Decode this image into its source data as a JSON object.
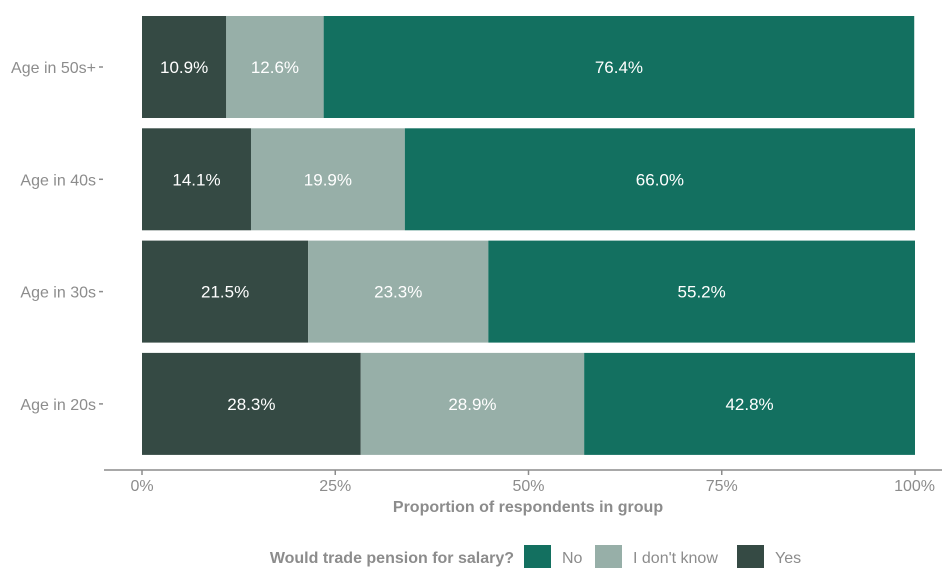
{
  "chart_data": {
    "type": "bar",
    "orientation": "horizontal",
    "stacked": true,
    "categories": [
      "Age in 50s+",
      "Age in 40s",
      "Age in 30s",
      "Age in 20s"
    ],
    "series": [
      {
        "name": "Yes",
        "color": "#354A44",
        "values": [
          10.9,
          14.1,
          21.5,
          28.3
        ],
        "labels": [
          "10.9%",
          "14.1%",
          "21.5%",
          "28.3%"
        ]
      },
      {
        "name": "I don't know",
        "color": "#97AFA8",
        "values": [
          12.6,
          19.9,
          23.3,
          28.9
        ],
        "labels": [
          "12.6%",
          "19.9%",
          "23.3%",
          "28.9%"
        ]
      },
      {
        "name": "No",
        "color": "#137060",
        "values": [
          76.4,
          66.0,
          55.2,
          42.8
        ],
        "labels": [
          "76.4%",
          "66.0%",
          "55.2%",
          "42.8%"
        ]
      }
    ],
    "xlabel": "Proportion of respondents in group",
    "ylabel": "",
    "xlim": [
      0,
      100
    ],
    "x_ticks": [
      0,
      25,
      50,
      75,
      100
    ],
    "x_tick_labels": [
      "0%",
      "25%",
      "50%",
      "75%",
      "100%"
    ],
    "grid": false,
    "legend": {
      "title": "Would trade pension for salary?",
      "position": "bottom",
      "order": [
        "No",
        "I don't know",
        "Yes"
      ]
    },
    "colors": {
      "axis": "#8C8C8C",
      "tick_text": "#8C8C8C",
      "axis_title": "#8C8C8C",
      "data_label": "#FFFFFF"
    }
  }
}
